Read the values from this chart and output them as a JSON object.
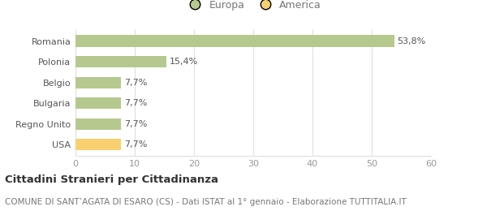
{
  "categories": [
    "Romania",
    "Polonia",
    "Belgio",
    "Bulgaria",
    "Regno Unito",
    "USA"
  ],
  "values": [
    53.8,
    15.4,
    7.7,
    7.7,
    7.7,
    7.7
  ],
  "labels": [
    "53,8%",
    "15,4%",
    "7,7%",
    "7,7%",
    "7,7%",
    "7,7%"
  ],
  "bar_colors": [
    "#b5c98e",
    "#b5c98e",
    "#b5c98e",
    "#b5c98e",
    "#b5c98e",
    "#f9d070"
  ],
  "legend_items": [
    {
      "label": "Europa",
      "color": "#b5c98e"
    },
    {
      "label": "America",
      "color": "#f9d070"
    }
  ],
  "xlim": [
    0,
    60
  ],
  "xticks": [
    0,
    10,
    20,
    30,
    40,
    50,
    60
  ],
  "title": "Cittadini Stranieri per Cittadinanza",
  "subtitle": "COMUNE DI SANT’AGATA DI ESARO (CS) - Dati ISTAT al 1° gennaio - Elaborazione TUTTITALIA.IT",
  "title_fontsize": 9.5,
  "subtitle_fontsize": 7.5,
  "label_fontsize": 8,
  "tick_fontsize": 8,
  "legend_fontsize": 9,
  "background_color": "#ffffff",
  "bar_height": 0.55,
  "grid_color": "#e0e0e0"
}
